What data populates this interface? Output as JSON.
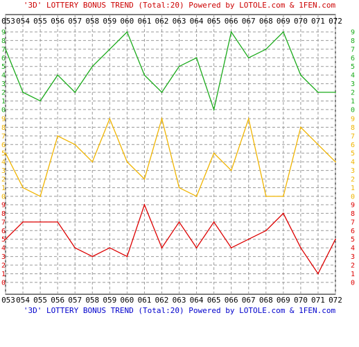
{
  "header": {
    "title_top": "'3D' LOTTERY BONUS TREND (Total:20)  Powered by LOTOLE.com & 1FEN.com",
    "title_bottom": "'3D' LOTTERY BONUS TREND (Total:20)  Powered by LOTOLE.com & 1FEN.com",
    "title_top_color": "#cc0000",
    "title_bottom_color": "#0000cc"
  },
  "chart_data": {
    "type": "line",
    "categories": [
      "053",
      "054",
      "055",
      "056",
      "057",
      "058",
      "059",
      "060",
      "061",
      "062",
      "063",
      "064",
      "065",
      "066",
      "067",
      "068",
      "069",
      "070",
      "071",
      "072"
    ],
    "y_tick_labels": [
      "0",
      "1",
      "2",
      "3",
      "4",
      "5",
      "6",
      "7",
      "8",
      "9"
    ],
    "ylim": [
      0,
      9
    ],
    "grid": true,
    "panels": [
      {
        "position": "top",
        "color": "#1aaa1a",
        "values": [
          7,
          2,
          1,
          4,
          2,
          5,
          7,
          9,
          4,
          2,
          5,
          6,
          0,
          9,
          6,
          7,
          9,
          4,
          2,
          2
        ]
      },
      {
        "position": "middle",
        "color": "#f0b400",
        "values": [
          5,
          1,
          0,
          7,
          6,
          4,
          9,
          4,
          2,
          9,
          1,
          0,
          5,
          3,
          9,
          0,
          0,
          8,
          6,
          4
        ]
      },
      {
        "position": "bottom",
        "color": "#dd0000",
        "values": [
          5,
          7,
          7,
          7,
          4,
          3,
          4,
          3,
          9,
          4,
          7,
          4,
          7,
          4,
          5,
          6,
          8,
          4,
          1,
          5
        ]
      }
    ]
  }
}
